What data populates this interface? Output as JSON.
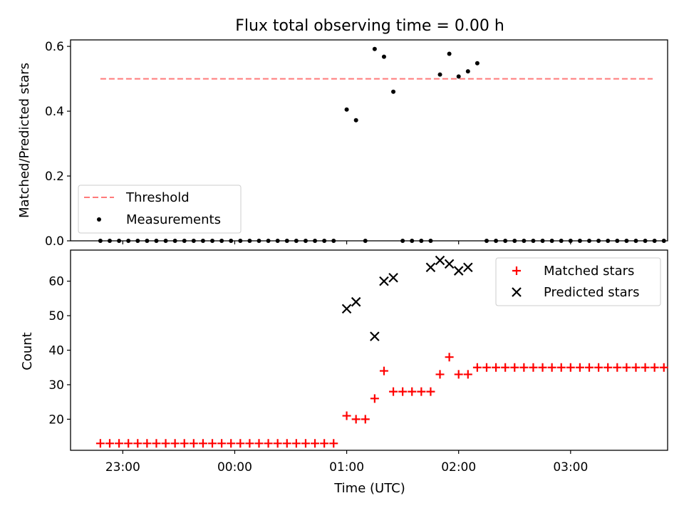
{
  "title": "Flux total observing time = 0.00 h",
  "colors": {
    "threshold": "#ff7a7a",
    "measurements": "#000000",
    "matched": "#ff0000",
    "predicted": "#000000"
  },
  "chart_data": [
    {
      "type": "scatter",
      "panel": "top",
      "ylabel": "Matched/Predicted stars",
      "ylim": [
        0,
        0.62
      ],
      "yticks": [
        0.0,
        0.2,
        0.4,
        0.6
      ],
      "ytick_labels": [
        "0.0",
        "0.2",
        "0.4",
        "0.6"
      ],
      "xlim": [
        "22:32",
        "03:52"
      ],
      "threshold": {
        "name": "Threshold",
        "value": 0.5,
        "x_range": [
          "22:48",
          "03:44"
        ]
      },
      "legend": {
        "location": "lower-left",
        "entries": [
          "Threshold",
          "Measurements"
        ]
      },
      "series": [
        {
          "name": "Measurements",
          "marker": "dot",
          "x": [
            "22:48",
            "22:53",
            "22:58",
            "23:03",
            "23:08",
            "23:13",
            "23:18",
            "23:23",
            "23:28",
            "23:33",
            "23:38",
            "23:43",
            "23:48",
            "23:53",
            "23:58",
            "00:03",
            "00:08",
            "00:13",
            "00:18",
            "00:23",
            "00:28",
            "00:33",
            "00:38",
            "00:43",
            "00:48",
            "00:53",
            "01:00",
            "01:05",
            "01:10",
            "01:15",
            "01:20",
            "01:25",
            "01:30",
            "01:35",
            "01:40",
            "01:45",
            "01:50",
            "01:55",
            "02:00",
            "02:05",
            "02:10",
            "02:15",
            "02:20",
            "02:25",
            "02:30",
            "02:35",
            "02:40",
            "02:45",
            "02:50",
            "02:55",
            "03:00",
            "03:05",
            "03:10",
            "03:15",
            "03:20",
            "03:25",
            "03:30",
            "03:35",
            "03:40",
            "03:45",
            "03:50"
          ],
          "values": [
            0,
            0,
            0,
            0,
            0,
            0,
            0,
            0,
            0,
            0,
            0,
            0,
            0,
            0,
            0,
            0,
            0,
            0,
            0,
            0,
            0,
            0,
            0,
            0,
            0,
            0,
            0.405,
            0.372,
            0,
            0.592,
            0.568,
            0.46,
            0,
            0,
            0,
            0,
            0.513,
            0.577,
            0.507,
            0.523,
            0.548,
            0,
            0,
            0,
            0,
            0,
            0,
            0,
            0,
            0,
            0,
            0,
            0,
            0,
            0,
            0,
            0,
            0,
            0,
            0,
            0
          ]
        }
      ]
    },
    {
      "type": "scatter",
      "panel": "bottom",
      "ylabel": "Count",
      "xlabel": "Time (UTC)",
      "ylim": [
        11,
        69
      ],
      "yticks": [
        20,
        30,
        40,
        50,
        60
      ],
      "ytick_labels": [
        "20",
        "30",
        "40",
        "50",
        "60"
      ],
      "xlim": [
        "22:32",
        "03:52"
      ],
      "xticks": [
        "23:00",
        "00:00",
        "01:00",
        "02:00",
        "03:00"
      ],
      "legend": {
        "location": "upper-right",
        "entries": [
          "Matched stars",
          "Predicted stars"
        ]
      },
      "series": [
        {
          "name": "Matched stars",
          "marker": "plus",
          "x": [
            "22:48",
            "22:53",
            "22:58",
            "23:03",
            "23:08",
            "23:13",
            "23:18",
            "23:23",
            "23:28",
            "23:33",
            "23:38",
            "23:43",
            "23:48",
            "23:53",
            "23:58",
            "00:03",
            "00:08",
            "00:13",
            "00:18",
            "00:23",
            "00:28",
            "00:33",
            "00:38",
            "00:43",
            "00:48",
            "00:53",
            "01:00",
            "01:05",
            "01:10",
            "01:15",
            "01:20",
            "01:25",
            "01:30",
            "01:35",
            "01:40",
            "01:45",
            "01:50",
            "01:55",
            "02:00",
            "02:05",
            "02:10",
            "02:15",
            "02:20",
            "02:25",
            "02:30",
            "02:35",
            "02:40",
            "02:45",
            "02:50",
            "02:55",
            "03:00",
            "03:05",
            "03:10",
            "03:15",
            "03:20",
            "03:25",
            "03:30",
            "03:35",
            "03:40",
            "03:45",
            "03:50"
          ],
          "values": [
            13,
            13,
            13,
            13,
            13,
            13,
            13,
            13,
            13,
            13,
            13,
            13,
            13,
            13,
            13,
            13,
            13,
            13,
            13,
            13,
            13,
            13,
            13,
            13,
            13,
            13,
            21,
            20,
            20,
            26,
            34,
            28,
            28,
            28,
            28,
            28,
            33,
            38,
            33,
            33,
            35,
            35,
            35,
            35,
            35,
            35,
            35,
            35,
            35,
            35,
            35,
            35,
            35,
            35,
            35,
            35,
            35,
            35,
            35,
            35,
            35
          ]
        },
        {
          "name": "Predicted stars",
          "marker": "x",
          "x": [
            "01:00",
            "01:05",
            "01:15",
            "01:20",
            "01:25",
            "01:45",
            "01:50",
            "01:55",
            "02:00",
            "02:05"
          ],
          "values": [
            52,
            54,
            44,
            60,
            61,
            64,
            66,
            65,
            63,
            64
          ]
        }
      ]
    }
  ]
}
